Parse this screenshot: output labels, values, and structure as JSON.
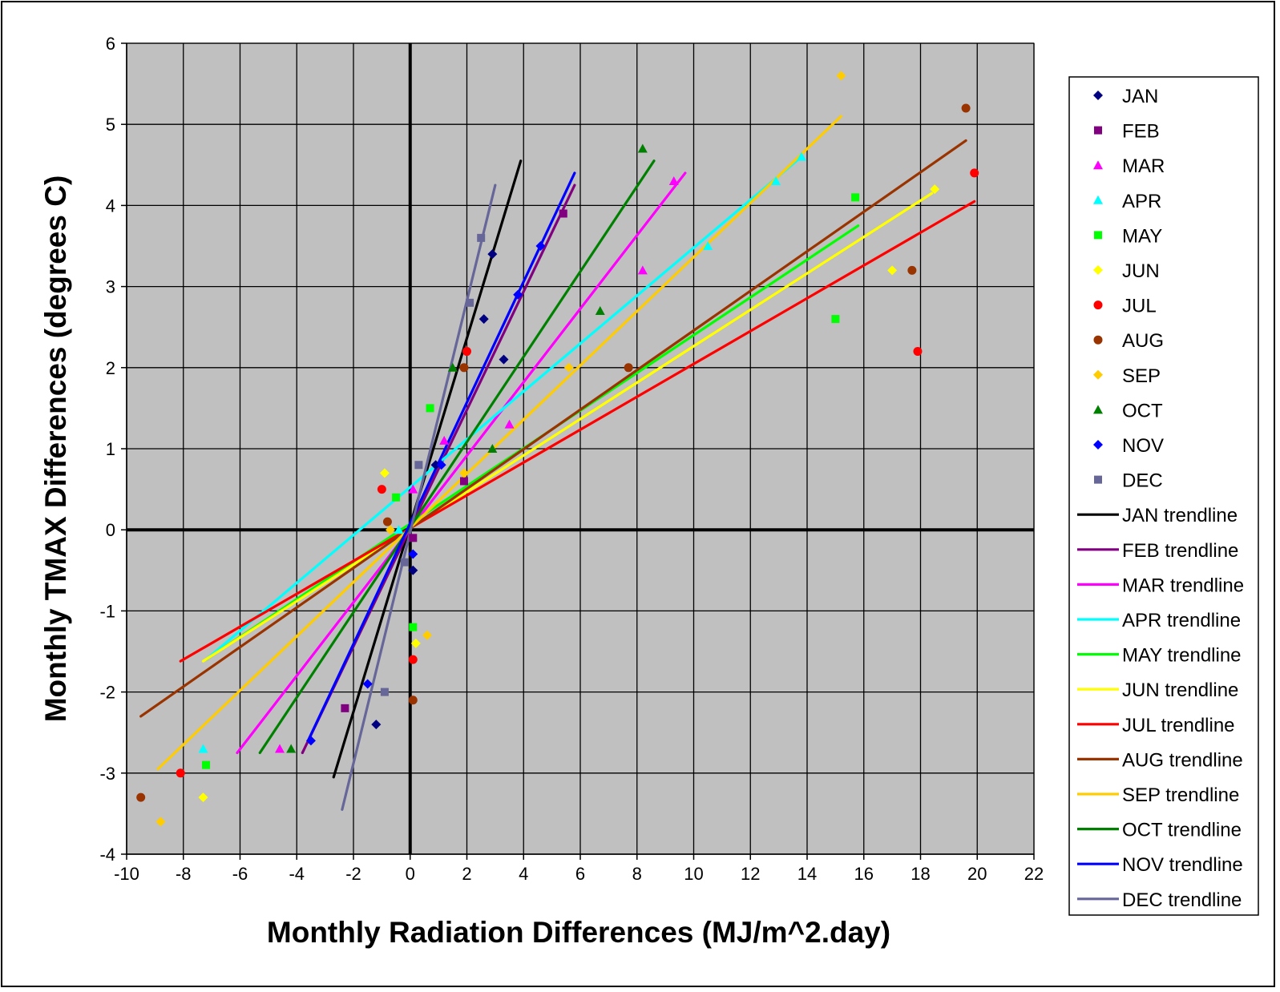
{
  "chart_data": {
    "type": "scatter",
    "xlabel": "Monthly Radiation Differences (MJ/m^2.day)",
    "ylabel": "Monthly TMAX Differences (degrees C)",
    "xlim": [
      -10,
      22
    ],
    "ylim": [
      -4,
      6
    ],
    "x_ticks": [
      -10,
      -8,
      -6,
      -4,
      -2,
      0,
      2,
      4,
      6,
      8,
      10,
      12,
      14,
      16,
      18,
      20,
      22
    ],
    "y_ticks": [
      -4,
      -3,
      -2,
      -1,
      0,
      1,
      2,
      3,
      4,
      5,
      6
    ],
    "x_tick_labels": [
      "-10",
      "-8",
      "-6",
      "-4",
      "-2",
      "0",
      "2",
      "4",
      "6",
      "8",
      "10",
      "12",
      "14",
      "16",
      "18",
      "20",
      "22"
    ],
    "y_tick_labels": [
      "-4",
      "-3",
      "-2",
      "-1",
      "0",
      "1",
      "2",
      "3",
      "4",
      "5",
      "6"
    ],
    "grid": true,
    "plot_background": "#c0c0c0",
    "legend_position": "right",
    "series": [
      {
        "name": "JAN",
        "marker": "diamond",
        "color": "#000080",
        "points": [
          [
            -1.2,
            -2.4
          ],
          [
            0.1,
            -0.5
          ],
          [
            0.9,
            0.8
          ],
          [
            2.6,
            2.6
          ],
          [
            2.9,
            3.4
          ],
          [
            3.3,
            2.1
          ]
        ]
      },
      {
        "name": "FEB",
        "marker": "square",
        "color": "#800080",
        "points": [
          [
            -2.3,
            -2.2
          ],
          [
            0.1,
            -0.1
          ],
          [
            1.9,
            0.6
          ],
          [
            5.4,
            3.9
          ]
        ]
      },
      {
        "name": "MAR",
        "marker": "triangle",
        "color": "#ff00ff",
        "points": [
          [
            -4.6,
            -2.7
          ],
          [
            0.1,
            0.5
          ],
          [
            1.2,
            1.1
          ],
          [
            3.5,
            1.3
          ],
          [
            8.2,
            3.2
          ],
          [
            9.3,
            4.3
          ]
        ]
      },
      {
        "name": "APR",
        "marker": "triangle",
        "color": "#00ffff",
        "points": [
          [
            -7.3,
            -2.7
          ],
          [
            -0.4,
            0.0
          ],
          [
            10.5,
            3.5
          ],
          [
            12.9,
            4.3
          ],
          [
            13.8,
            4.6
          ]
        ]
      },
      {
        "name": "MAY",
        "marker": "square",
        "color": "#00ff00",
        "points": [
          [
            -7.2,
            -2.9
          ],
          [
            -0.5,
            0.4
          ],
          [
            0.7,
            1.5
          ],
          [
            0.1,
            -1.2
          ],
          [
            15.0,
            2.6
          ],
          [
            15.7,
            4.1
          ]
        ]
      },
      {
        "name": "JUN",
        "marker": "diamond",
        "color": "#ffff00",
        "points": [
          [
            -7.3,
            -3.3
          ],
          [
            -0.9,
            0.7
          ],
          [
            0.2,
            -1.4
          ],
          [
            17.0,
            3.2
          ],
          [
            18.5,
            4.2
          ]
        ]
      },
      {
        "name": "JUL",
        "marker": "circle",
        "color": "#ff0000",
        "points": [
          [
            -8.1,
            -3.0
          ],
          [
            -1.0,
            0.5
          ],
          [
            0.1,
            -1.6
          ],
          [
            2.0,
            2.2
          ],
          [
            17.9,
            2.2
          ],
          [
            19.9,
            4.4
          ]
        ]
      },
      {
        "name": "AUG",
        "marker": "circle",
        "color": "#993300",
        "points": [
          [
            -9.5,
            -3.3
          ],
          [
            -0.8,
            0.1
          ],
          [
            0.1,
            -2.1
          ],
          [
            1.9,
            2.0
          ],
          [
            7.7,
            2.0
          ],
          [
            17.7,
            3.2
          ],
          [
            19.6,
            5.2
          ]
        ]
      },
      {
        "name": "SEP",
        "marker": "diamond",
        "color": "#ffcc00",
        "points": [
          [
            -8.8,
            -3.6
          ],
          [
            -0.7,
            0.0
          ],
          [
            0.6,
            -1.3
          ],
          [
            1.9,
            0.7
          ],
          [
            5.6,
            2.0
          ],
          [
            15.2,
            5.6
          ]
        ]
      },
      {
        "name": "OCT",
        "marker": "triangle",
        "color": "#008000",
        "points": [
          [
            -4.2,
            -2.7
          ],
          [
            1.5,
            2.0
          ],
          [
            2.9,
            1.0
          ],
          [
            6.7,
            2.7
          ],
          [
            8.2,
            4.7
          ]
        ]
      },
      {
        "name": "NOV",
        "marker": "diamond",
        "color": "#0000ff",
        "points": [
          [
            -3.5,
            -2.6
          ],
          [
            -1.5,
            -1.9
          ],
          [
            0.1,
            -0.3
          ],
          [
            1.1,
            0.8
          ],
          [
            3.8,
            2.9
          ],
          [
            4.6,
            3.5
          ]
        ]
      },
      {
        "name": "DEC",
        "marker": "square",
        "color": "#666699",
        "points": [
          [
            -0.9,
            -2.0
          ],
          [
            -0.2,
            -0.4
          ],
          [
            0.3,
            0.8
          ],
          [
            2.1,
            2.8
          ],
          [
            2.5,
            3.6
          ]
        ]
      }
    ],
    "trendlines": [
      {
        "name": "JAN trendline",
        "color": "#000000",
        "x": [
          -2.7,
          3.9
        ],
        "y": [
          -3.05,
          4.55
        ]
      },
      {
        "name": "FEB trendline",
        "color": "#800080",
        "x": [
          -3.8,
          5.8
        ],
        "y": [
          -2.75,
          4.25
        ]
      },
      {
        "name": "MAR trendline",
        "color": "#ff00ff",
        "x": [
          -6.1,
          9.7
        ],
        "y": [
          -2.75,
          4.4
        ]
      },
      {
        "name": "APR trendline",
        "color": "#00ffff",
        "x": [
          -7.2,
          13.8
        ],
        "y": [
          -1.6,
          4.6
        ]
      },
      {
        "name": "MAY trendline",
        "color": "#00ff00",
        "x": [
          -7.2,
          15.8
        ],
        "y": [
          -1.6,
          3.75
        ]
      },
      {
        "name": "JUN trendline",
        "color": "#ffff00",
        "x": [
          -7.3,
          18.4
        ],
        "y": [
          -1.62,
          4.15
        ]
      },
      {
        "name": "JUL trendline",
        "color": "#ff0000",
        "x": [
          -8.1,
          19.9
        ],
        "y": [
          -1.62,
          4.05
        ]
      },
      {
        "name": "AUG trendline",
        "color": "#993300",
        "x": [
          -9.5,
          19.6
        ],
        "y": [
          -2.3,
          4.8
        ]
      },
      {
        "name": "SEP trendline",
        "color": "#ffcc00",
        "x": [
          -8.9,
          15.2
        ],
        "y": [
          -2.95,
          5.1
        ]
      },
      {
        "name": "OCT trendline",
        "color": "#008000",
        "x": [
          -5.3,
          8.6
        ],
        "y": [
          -2.75,
          4.55
        ]
      },
      {
        "name": "NOV trendline",
        "color": "#0000ff",
        "x": [
          -3.6,
          5.8
        ],
        "y": [
          -2.6,
          4.4
        ]
      },
      {
        "name": "DEC trendline",
        "color": "#666699",
        "x": [
          -2.4,
          3.0
        ],
        "y": [
          -3.45,
          4.25
        ]
      }
    ]
  }
}
